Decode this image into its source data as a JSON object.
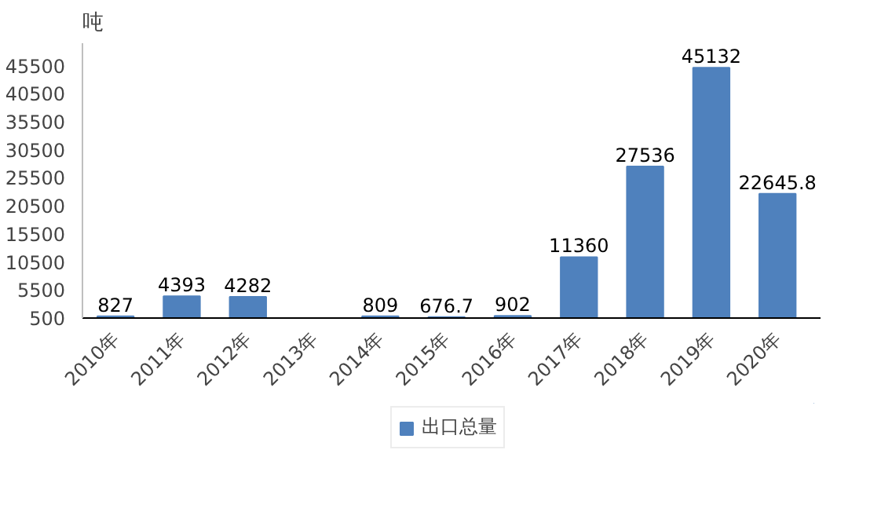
{
  "chart_data": {
    "type": "bar",
    "ylabel": "吨",
    "categories": [
      "2010年",
      "2011年",
      "2012年",
      "2013年",
      "2014年",
      "2015年",
      "2016年",
      "2017年",
      "2018年",
      "2019年",
      "2020年"
    ],
    "series": [
      {
        "name": "出口总量",
        "color": "#4f81bd",
        "values": [
          827,
          4393,
          4282,
          null,
          809,
          676.7,
          902,
          11360,
          27536,
          45132,
          22645.8
        ]
      }
    ],
    "ylim": [
      500,
      49500
    ],
    "yticks": [
      500,
      5500,
      10500,
      15500,
      20500,
      25500,
      30500,
      35500,
      40500,
      45500
    ],
    "data_labels": true,
    "grid": false,
    "legend": "bottom"
  }
}
